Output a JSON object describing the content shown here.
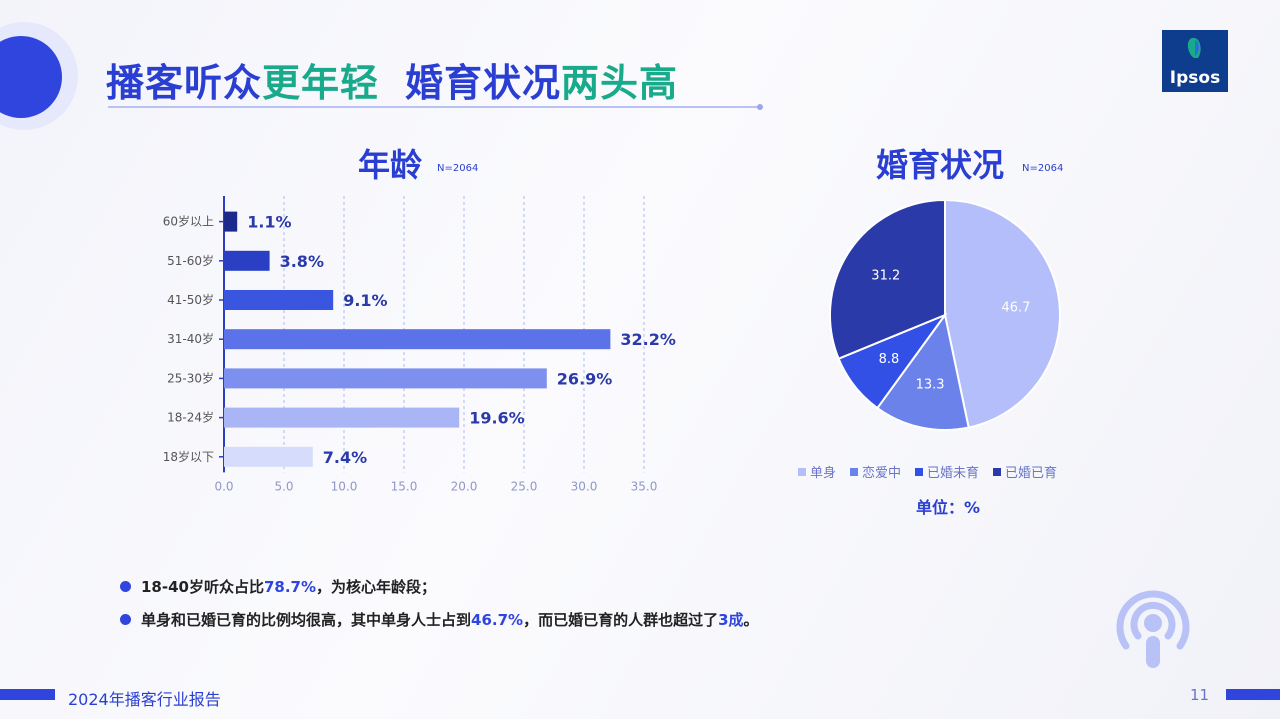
{
  "title": {
    "part1": "播客听众",
    "part2": "更年轻",
    "part3": "婚育状况",
    "part4": "两头高"
  },
  "logo_text": "Ipsos",
  "age_chart": {
    "title": "年龄",
    "n": "N=2064"
  },
  "marriage_chart": {
    "title": "婚育状况",
    "n": "N=2064",
    "unit": "单位：%"
  },
  "notes": {
    "n1_pre": "18-40岁听众占比",
    "n1_hl": "78.7%",
    "n1_post": "，为核心年龄段；",
    "n2_pre": "单身和已婚已育的比例均很高，其中单身人士占到",
    "n2_hl1": "46.7%",
    "n2_mid": "，而已婚已育的人群也超过了",
    "n2_hl2": "3成",
    "n2_post": "。"
  },
  "footer": {
    "text": "2024年播客行业报告",
    "page": "11"
  },
  "colors": {
    "accent": "#2f45de",
    "green": "#19a98b"
  },
  "chart_data": [
    {
      "type": "bar",
      "orientation": "horizontal",
      "title": "年龄",
      "categories": [
        "60岁以上",
        "51-60岁",
        "41-50岁",
        "31-40岁",
        "25-30岁",
        "18-24岁",
        "18岁以下"
      ],
      "values": [
        1.1,
        3.8,
        9.1,
        32.2,
        26.9,
        19.6,
        7.4
      ],
      "value_labels": [
        "1.1%",
        "3.8%",
        "9.1%",
        "32.2%",
        "26.9%",
        "19.6%",
        "7.4%"
      ],
      "colors": [
        "#1c2a8c",
        "#2a3fc4",
        "#3a55e0",
        "#5c72e8",
        "#7d8fef",
        "#a9b5f4",
        "#d6dcfb"
      ],
      "xlim": [
        0,
        35
      ],
      "xticks": [
        "0.0",
        "5.0",
        "10.0",
        "15.0",
        "20.0",
        "25.0",
        "30.0",
        "35.0"
      ],
      "grid": true
    },
    {
      "type": "pie",
      "title": "婚育状况",
      "labels": [
        "单身",
        "恋爱中",
        "已婚未育",
        "已婚已育"
      ],
      "values": [
        46.7,
        13.3,
        8.8,
        31.2
      ],
      "value_labels": [
        "46.7",
        "13.3",
        "8.8",
        "31.2"
      ],
      "colors": [
        "#b3befa",
        "#6b82ea",
        "#3350e6",
        "#2a3aa8"
      ],
      "legend_position": "bottom"
    }
  ]
}
